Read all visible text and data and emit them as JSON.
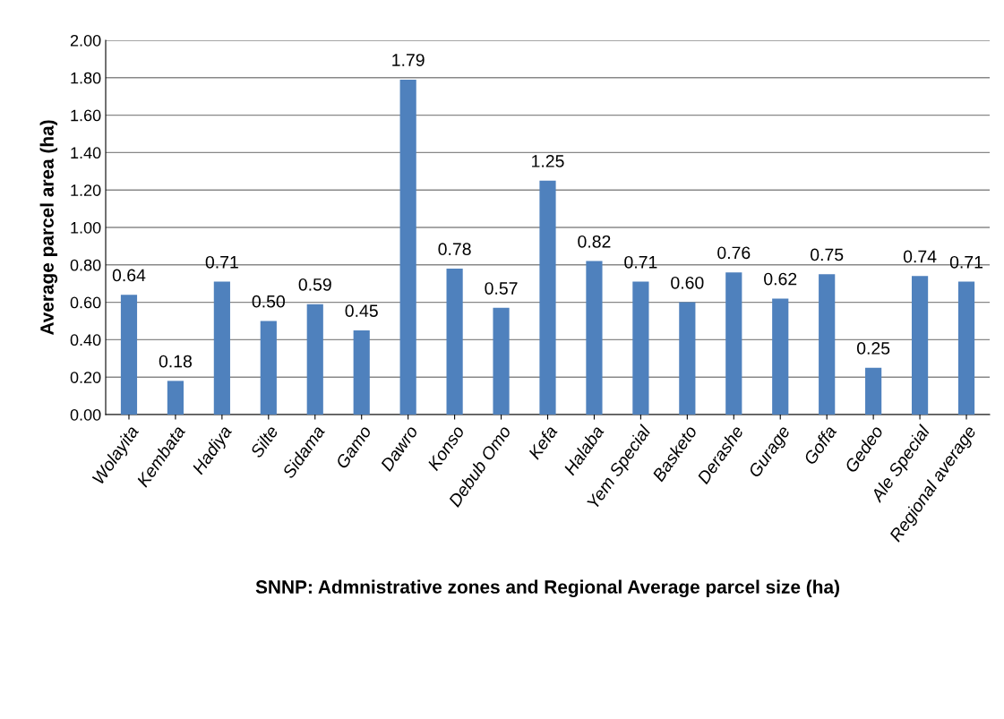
{
  "chart_data": {
    "type": "bar",
    "xlabel": "SNNP: Admnistrative zones and Regional Average parcel size (ha)",
    "ylabel": "Average parcel area (ha)",
    "categories": [
      "Wolayita",
      "Kembata",
      "Hadiya",
      "Silte",
      "Sidama",
      "Gamo",
      "Dawro",
      "Konso",
      "Debub Omo",
      "Kefa",
      "Halaba",
      "Yem Special",
      "Basketo",
      "Derashe",
      "Gurage",
      "Goffa",
      "Gedeo",
      "Ale Special",
      "Regional average"
    ],
    "values": [
      0.64,
      0.18,
      0.71,
      0.5,
      0.59,
      0.45,
      1.79,
      0.78,
      0.57,
      1.25,
      0.82,
      0.71,
      0.6,
      0.76,
      0.62,
      0.75,
      0.25,
      0.74,
      0.71
    ],
    "value_labels": [
      "0.64",
      "0.18",
      "0.71",
      "0.50",
      "0.59",
      "0.45",
      "1.79",
      "0.78",
      "0.57",
      "1.25",
      "0.82",
      "0.71",
      "0.60",
      "0.76",
      "0.62",
      "0.75",
      "0.25",
      "0.74",
      "0.71"
    ],
    "color": "#4f81bd",
    "ylim": [
      0,
      2
    ],
    "yticks": [
      {
        "value": 0,
        "label": "0.00"
      },
      {
        "value": 0.2,
        "label": "0.20"
      },
      {
        "value": 0.4,
        "label": "0.40"
      },
      {
        "value": 0.6,
        "label": "0.60"
      },
      {
        "value": 0.8,
        "label": "0.80"
      },
      {
        "value": 1.0,
        "label": "1.00"
      },
      {
        "value": 1.2,
        "label": "1.20"
      },
      {
        "value": 1.4,
        "label": "1.40"
      },
      {
        "value": 1.6,
        "label": "1.60"
      },
      {
        "value": 1.8,
        "label": "1.80"
      },
      {
        "value": 2.0,
        "label": "2.00"
      }
    ],
    "grid": "y"
  }
}
